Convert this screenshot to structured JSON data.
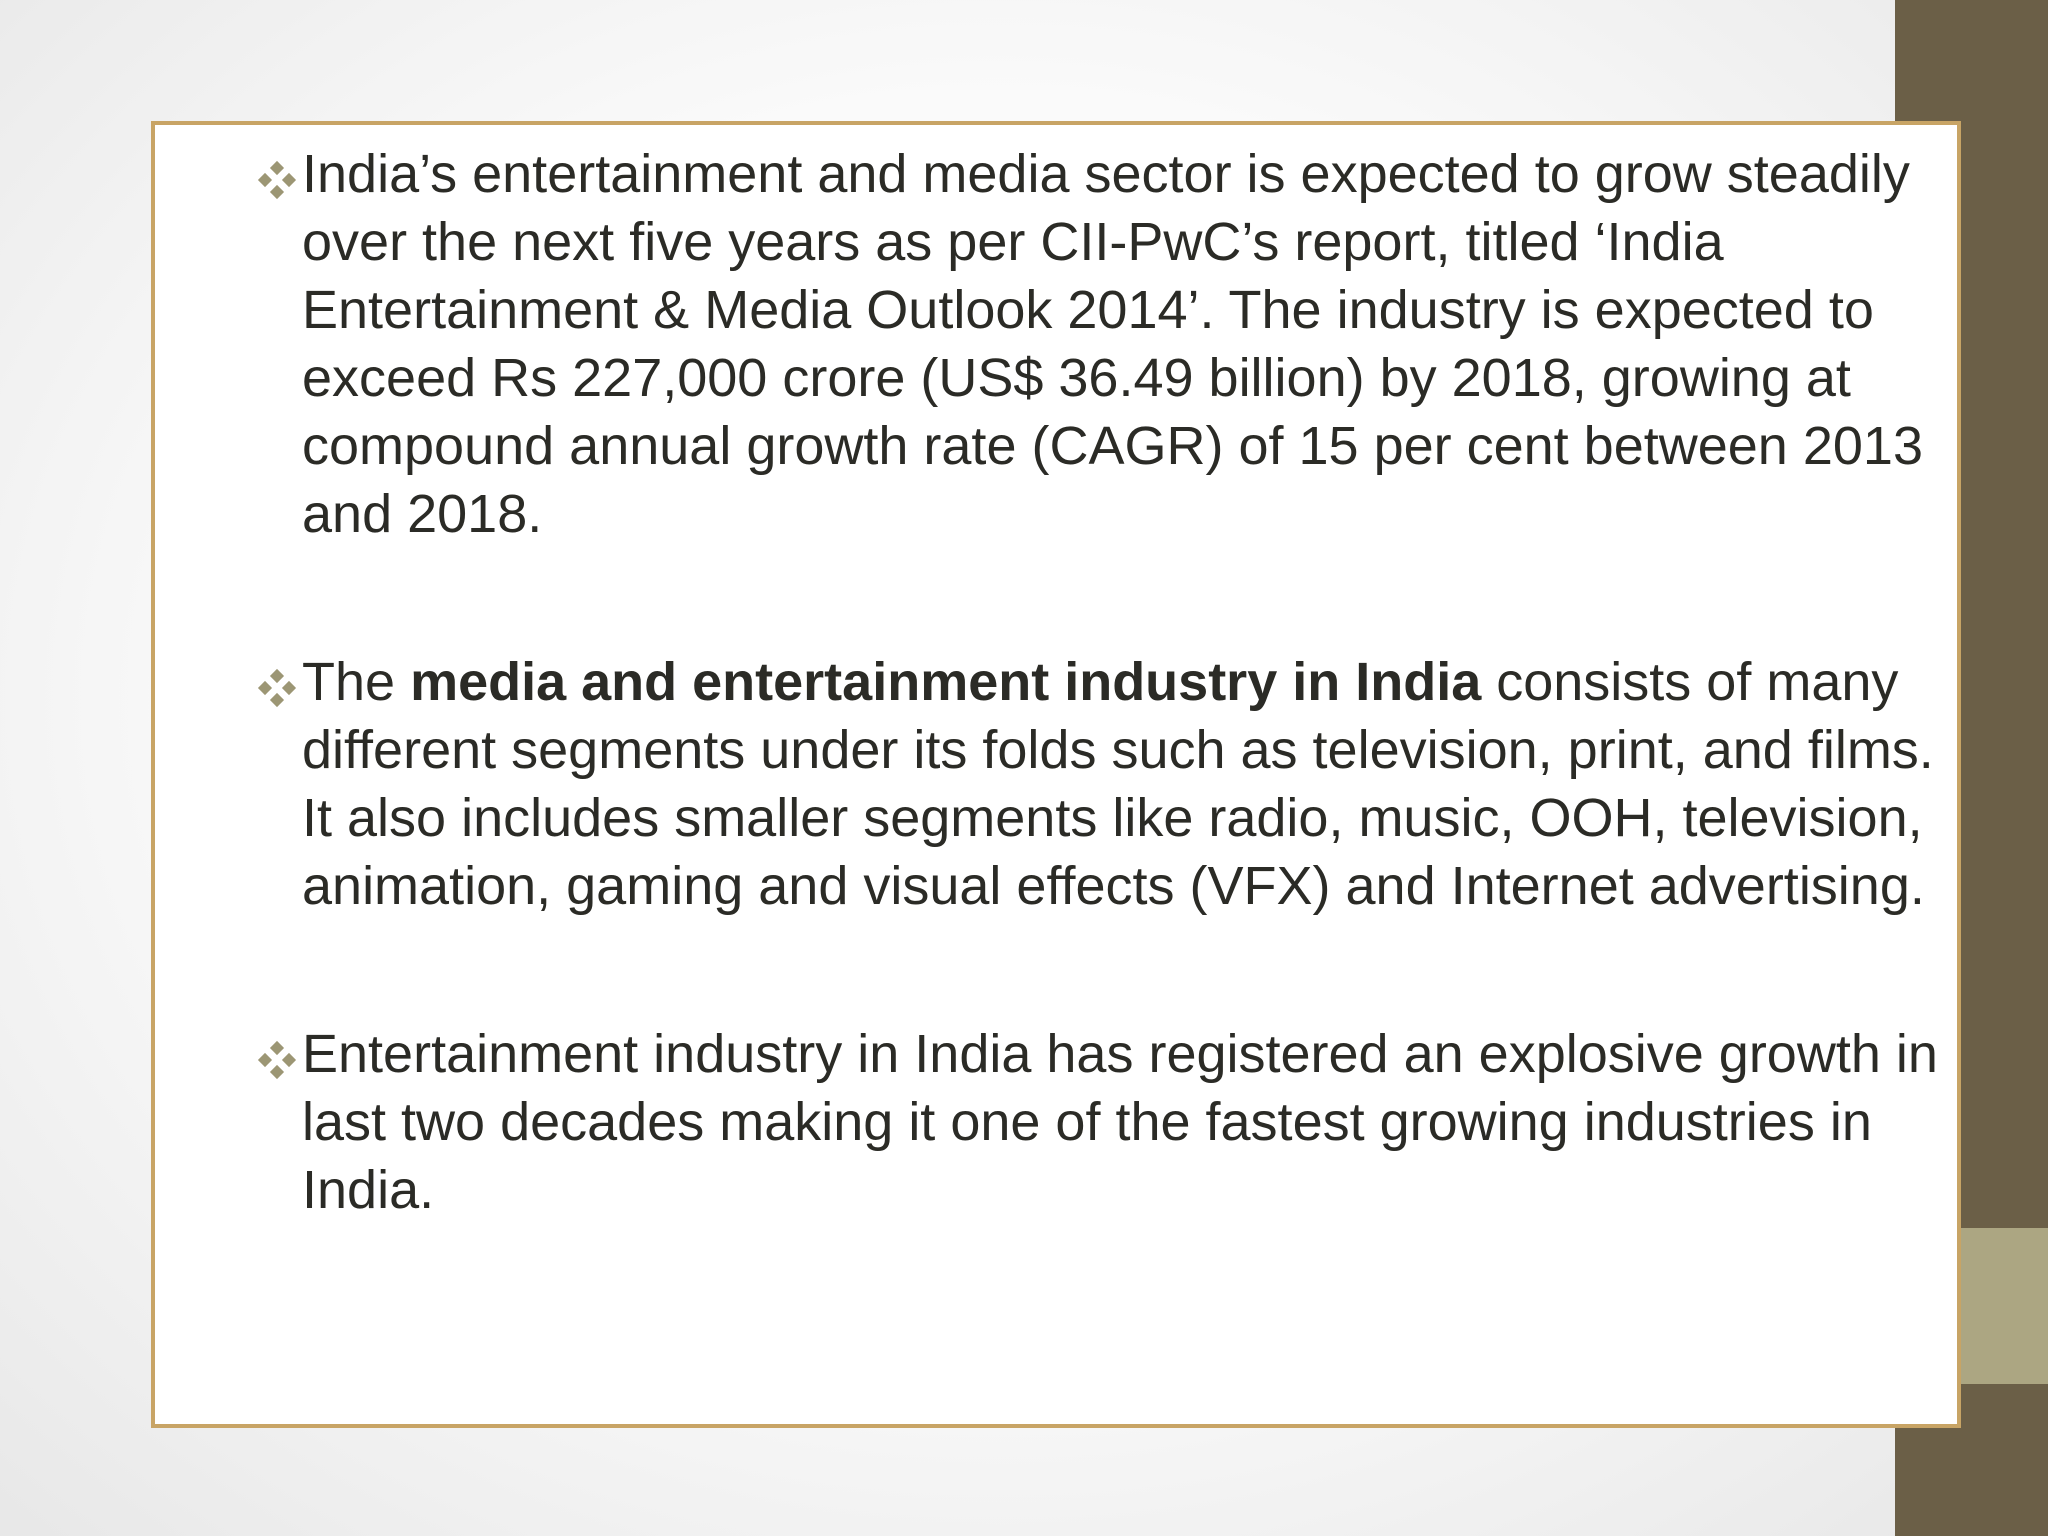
{
  "slide": {
    "bullet_icon": "diamond-bullet-icon",
    "colors": {
      "sidebar": "#6b5f47",
      "sidebar_accent": "#aca682",
      "frame_border": "#c8a465",
      "bullet": "#9c9674",
      "text": "#2b2b26"
    },
    "bullets": [
      {
        "text": "India’s entertainment and media sector is expected to grow steadily over the next five years as per CII-PwC’s report, titled ‘India Entertainment & Media Outlook 2014’. The industry is expected to exceed Rs 227,000 crore (US$ 36.49 billion) by 2018, growing at compound annual growth rate (CAGR) of 15 per cent between 2013 and 2018."
      },
      {
        "text_before": "The ",
        "text_bold": "media and entertainment industry in India",
        "text_after": " consists of many different segments under its folds such as television, print, and films. It also includes smaller segments like radio, music, OOH, television, animation, gaming and visual effects (VFX) and Internet advertising."
      },
      {
        "text": "Entertainment industry in India has registered an explosive growth in last two decades making it one of the fastest growing industries in India."
      }
    ]
  }
}
